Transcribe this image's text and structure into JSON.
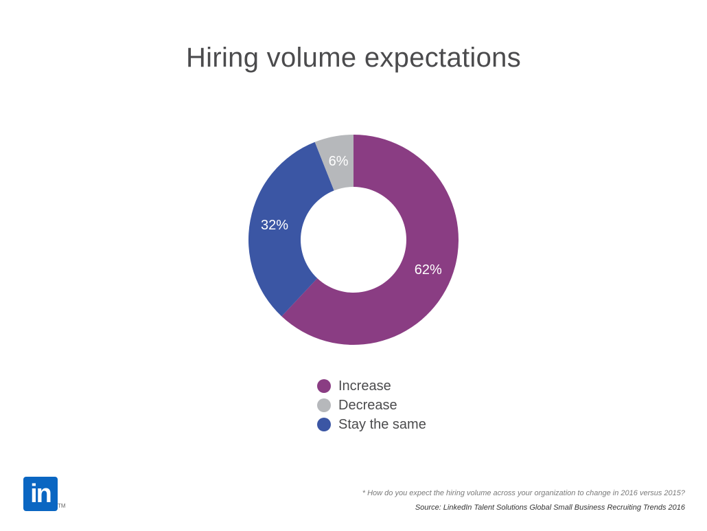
{
  "chart_data": {
    "type": "pie",
    "title": "Hiring volume expectations",
    "categories": [
      "Increase",
      "Stay the same",
      "Decrease"
    ],
    "values": [
      62,
      32,
      6
    ],
    "data_labels": [
      "62%",
      "32%",
      "6%"
    ],
    "colors": [
      "#8a3d83",
      "#3b56a4",
      "#b6b8bb"
    ],
    "legend": {
      "placement": "bottom",
      "items": [
        {
          "label": "Increase",
          "color": "#8a3d83"
        },
        {
          "label": "Decrease",
          "color": "#b6b8bb"
        },
        {
          "label": "Stay the same",
          "color": "#3b56a4"
        }
      ]
    }
  },
  "logo": {
    "text": "in",
    "trademark": "TM",
    "icon": "linkedin-logo-icon"
  },
  "footnote": "* How do you expect the hiring volume across your organization to change in 2016 versus 2015?",
  "source": "Source: LinkedIn Talent Solutions Global Small Business Recruiting Trends 2016"
}
